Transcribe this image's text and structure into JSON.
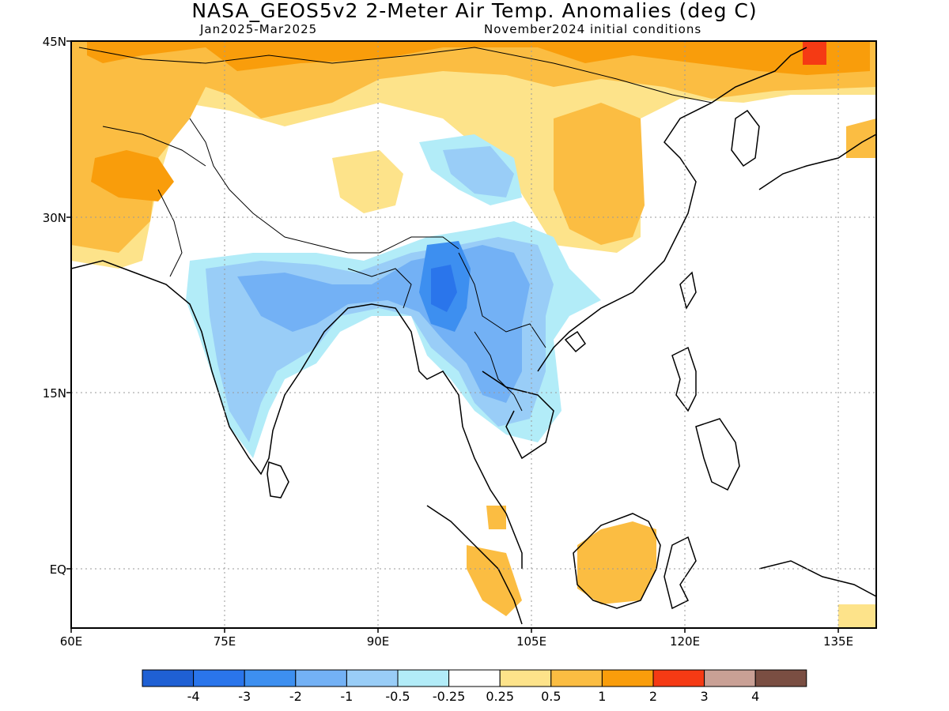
{
  "header": {
    "title": "NASA_GEOS5v2 2-Meter Air Temp. Anomalies (deg C)",
    "period": "Jan2025-Mar2025",
    "init": "November2024 initial conditions"
  },
  "axes": {
    "lat_labels": [
      "45N",
      "30N",
      "15N",
      "EQ"
    ],
    "lon_labels": [
      "60E",
      "75E",
      "90E",
      "105E",
      "120E",
      "135E"
    ]
  },
  "colorbar": {
    "colors": [
      "#1f60d4",
      "#2a75eb",
      "#3d8ff0",
      "#73b1f5",
      "#99cdf7",
      "#b2ecf8",
      "#ffffff",
      "#fde38a",
      "#fbbd42",
      "#f99d0b",
      "#f53a14",
      "#c9a095",
      "#7a4e42"
    ],
    "labels": [
      "-4",
      "-3",
      "-2",
      "-1",
      "-0.5",
      "-0.25",
      "0.25",
      "0.5",
      "1",
      "2",
      "3",
      "4"
    ]
  }
}
